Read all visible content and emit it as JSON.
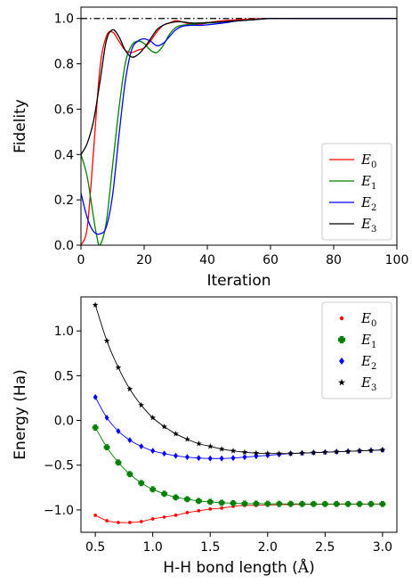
{
  "chart_data": [
    {
      "type": "line",
      "title": "",
      "xlabel": "Iteration",
      "ylabel": "Fidelity",
      "xlim": [
        0,
        100
      ],
      "ylim": [
        0,
        1.05
      ],
      "xticks": [
        0,
        20,
        40,
        60,
        80,
        100
      ],
      "yticks": [
        0.0,
        0.2,
        0.4,
        0.6,
        0.8,
        1.0
      ],
      "reference_line": {
        "y": 1.0,
        "style": "dash-dot",
        "color": "#000000"
      },
      "legend": {
        "placement": "lower-right"
      },
      "series": [
        {
          "name": "E",
          "sub": "0",
          "color": "#ff0000",
          "x": [
            0,
            2,
            4,
            6,
            8,
            10,
            12,
            14,
            16,
            18,
            20,
            22,
            24,
            26,
            28,
            30,
            32,
            35,
            38,
            40,
            42,
            45,
            50,
            55,
            60,
            70,
            80,
            100
          ],
          "y": [
            0.0,
            0.08,
            0.42,
            0.78,
            0.92,
            0.94,
            0.9,
            0.86,
            0.85,
            0.86,
            0.87,
            0.9,
            0.94,
            0.97,
            0.98,
            0.99,
            0.985,
            0.975,
            0.975,
            0.98,
            0.985,
            0.99,
            0.995,
            0.998,
            1.0,
            1.0,
            1.0,
            1.0
          ]
        },
        {
          "name": "E",
          "sub": "1",
          "color": "#008000",
          "x": [
            0,
            2,
            4,
            5,
            6,
            8,
            10,
            12,
            14,
            16,
            18,
            20,
            22,
            24,
            26,
            28,
            30,
            32,
            35,
            40,
            45,
            50,
            55,
            60,
            70,
            80,
            100
          ],
          "y": [
            0.4,
            0.3,
            0.12,
            0.04,
            0.0,
            0.1,
            0.35,
            0.6,
            0.8,
            0.88,
            0.9,
            0.89,
            0.86,
            0.85,
            0.88,
            0.93,
            0.96,
            0.97,
            0.975,
            0.98,
            0.985,
            0.99,
            0.995,
            1.0,
            1.0,
            1.0,
            1.0
          ]
        },
        {
          "name": "E",
          "sub": "2",
          "color": "#0000ff",
          "x": [
            0,
            2,
            4,
            6,
            8,
            10,
            12,
            14,
            16,
            18,
            20,
            22,
            24,
            26,
            28,
            30,
            32,
            35,
            38,
            40,
            45,
            50,
            55,
            60,
            70,
            80,
            100
          ],
          "y": [
            0.23,
            0.12,
            0.06,
            0.05,
            0.08,
            0.22,
            0.48,
            0.72,
            0.86,
            0.9,
            0.91,
            0.9,
            0.88,
            0.89,
            0.92,
            0.95,
            0.965,
            0.97,
            0.97,
            0.972,
            0.98,
            0.99,
            0.995,
            1.0,
            1.0,
            1.0,
            1.0
          ]
        },
        {
          "name": "E",
          "sub": "3",
          "color": "#000000",
          "x": [
            0,
            2,
            4,
            6,
            8,
            10,
            12,
            14,
            16,
            18,
            20,
            22,
            24,
            26,
            28,
            30,
            32,
            35,
            38,
            40,
            45,
            50,
            55,
            60,
            70,
            80,
            100
          ],
          "y": [
            0.4,
            0.45,
            0.55,
            0.72,
            0.9,
            0.95,
            0.92,
            0.86,
            0.83,
            0.84,
            0.87,
            0.91,
            0.95,
            0.97,
            0.98,
            0.985,
            0.985,
            0.98,
            0.98,
            0.982,
            0.985,
            0.99,
            0.995,
            1.0,
            1.0,
            1.0,
            1.0
          ]
        }
      ]
    },
    {
      "type": "line",
      "title": "",
      "xlabel": "H-H bond length (",
      "xlabel_unit": "Å",
      "xlabel_close": ")",
      "ylabel": "Energy (Ha)",
      "xlim": [
        0.375,
        3.125
      ],
      "ylim": [
        -1.25,
        1.38
      ],
      "xticks": [
        0.5,
        1.0,
        1.5,
        2.0,
        2.5,
        3.0
      ],
      "xtick_labels": [
        "0.5",
        "1.0",
        "1.5",
        "2.0",
        "2.5",
        "3.0"
      ],
      "yticks": [
        -1.0,
        -0.5,
        0.0,
        0.5,
        1.0
      ],
      "ytick_labels": [
        "−1.0",
        "−0.5",
        "0.0",
        "0.5",
        "1.0"
      ],
      "legend": {
        "placement": "upper-right"
      },
      "x": [
        0.5,
        0.6,
        0.7,
        0.8,
        0.9,
        1.0,
        1.1,
        1.2,
        1.3,
        1.4,
        1.5,
        1.6,
        1.7,
        1.8,
        1.9,
        2.0,
        2.1,
        2.2,
        2.3,
        2.4,
        2.5,
        2.6,
        2.7,
        2.8,
        2.9,
        3.0
      ],
      "series": [
        {
          "name": "E",
          "sub": "0",
          "color": "#ff0000",
          "marker": "dot",
          "values": [
            -1.06,
            -1.12,
            -1.14,
            -1.14,
            -1.13,
            -1.1,
            -1.08,
            -1.06,
            -1.03,
            -1.01,
            -0.99,
            -0.98,
            -0.96,
            -0.95,
            -0.95,
            -0.945,
            -0.942,
            -0.94,
            -0.938,
            -0.937,
            -0.936,
            -0.935,
            -0.935,
            -0.934,
            -0.934,
            -0.934
          ]
        },
        {
          "name": "E",
          "sub": "1",
          "color": "#008000",
          "marker": "plus",
          "values": [
            -0.08,
            -0.3,
            -0.47,
            -0.6,
            -0.7,
            -0.77,
            -0.82,
            -0.86,
            -0.88,
            -0.9,
            -0.91,
            -0.92,
            -0.925,
            -0.93,
            -0.93,
            -0.932,
            -0.933,
            -0.933,
            -0.934,
            -0.934,
            -0.934,
            -0.934,
            -0.934,
            -0.934,
            -0.934,
            -0.934
          ]
        },
        {
          "name": "E",
          "sub": "2",
          "color": "#0000ff",
          "marker": "diamond",
          "values": [
            0.26,
            0.03,
            -0.12,
            -0.22,
            -0.29,
            -0.34,
            -0.37,
            -0.395,
            -0.41,
            -0.42,
            -0.425,
            -0.425,
            -0.42,
            -0.41,
            -0.4,
            -0.39,
            -0.38,
            -0.37,
            -0.365,
            -0.36,
            -0.355,
            -0.35,
            -0.345,
            -0.34,
            -0.335,
            -0.33
          ]
        },
        {
          "name": "E",
          "sub": "3",
          "color": "#000000",
          "marker": "star",
          "values": [
            1.29,
            0.89,
            0.59,
            0.35,
            0.17,
            0.03,
            -0.07,
            -0.15,
            -0.21,
            -0.26,
            -0.29,
            -0.32,
            -0.34,
            -0.355,
            -0.365,
            -0.37,
            -0.37,
            -0.37,
            -0.365,
            -0.36,
            -0.355,
            -0.35,
            -0.345,
            -0.34,
            -0.335,
            -0.33
          ]
        }
      ]
    }
  ]
}
